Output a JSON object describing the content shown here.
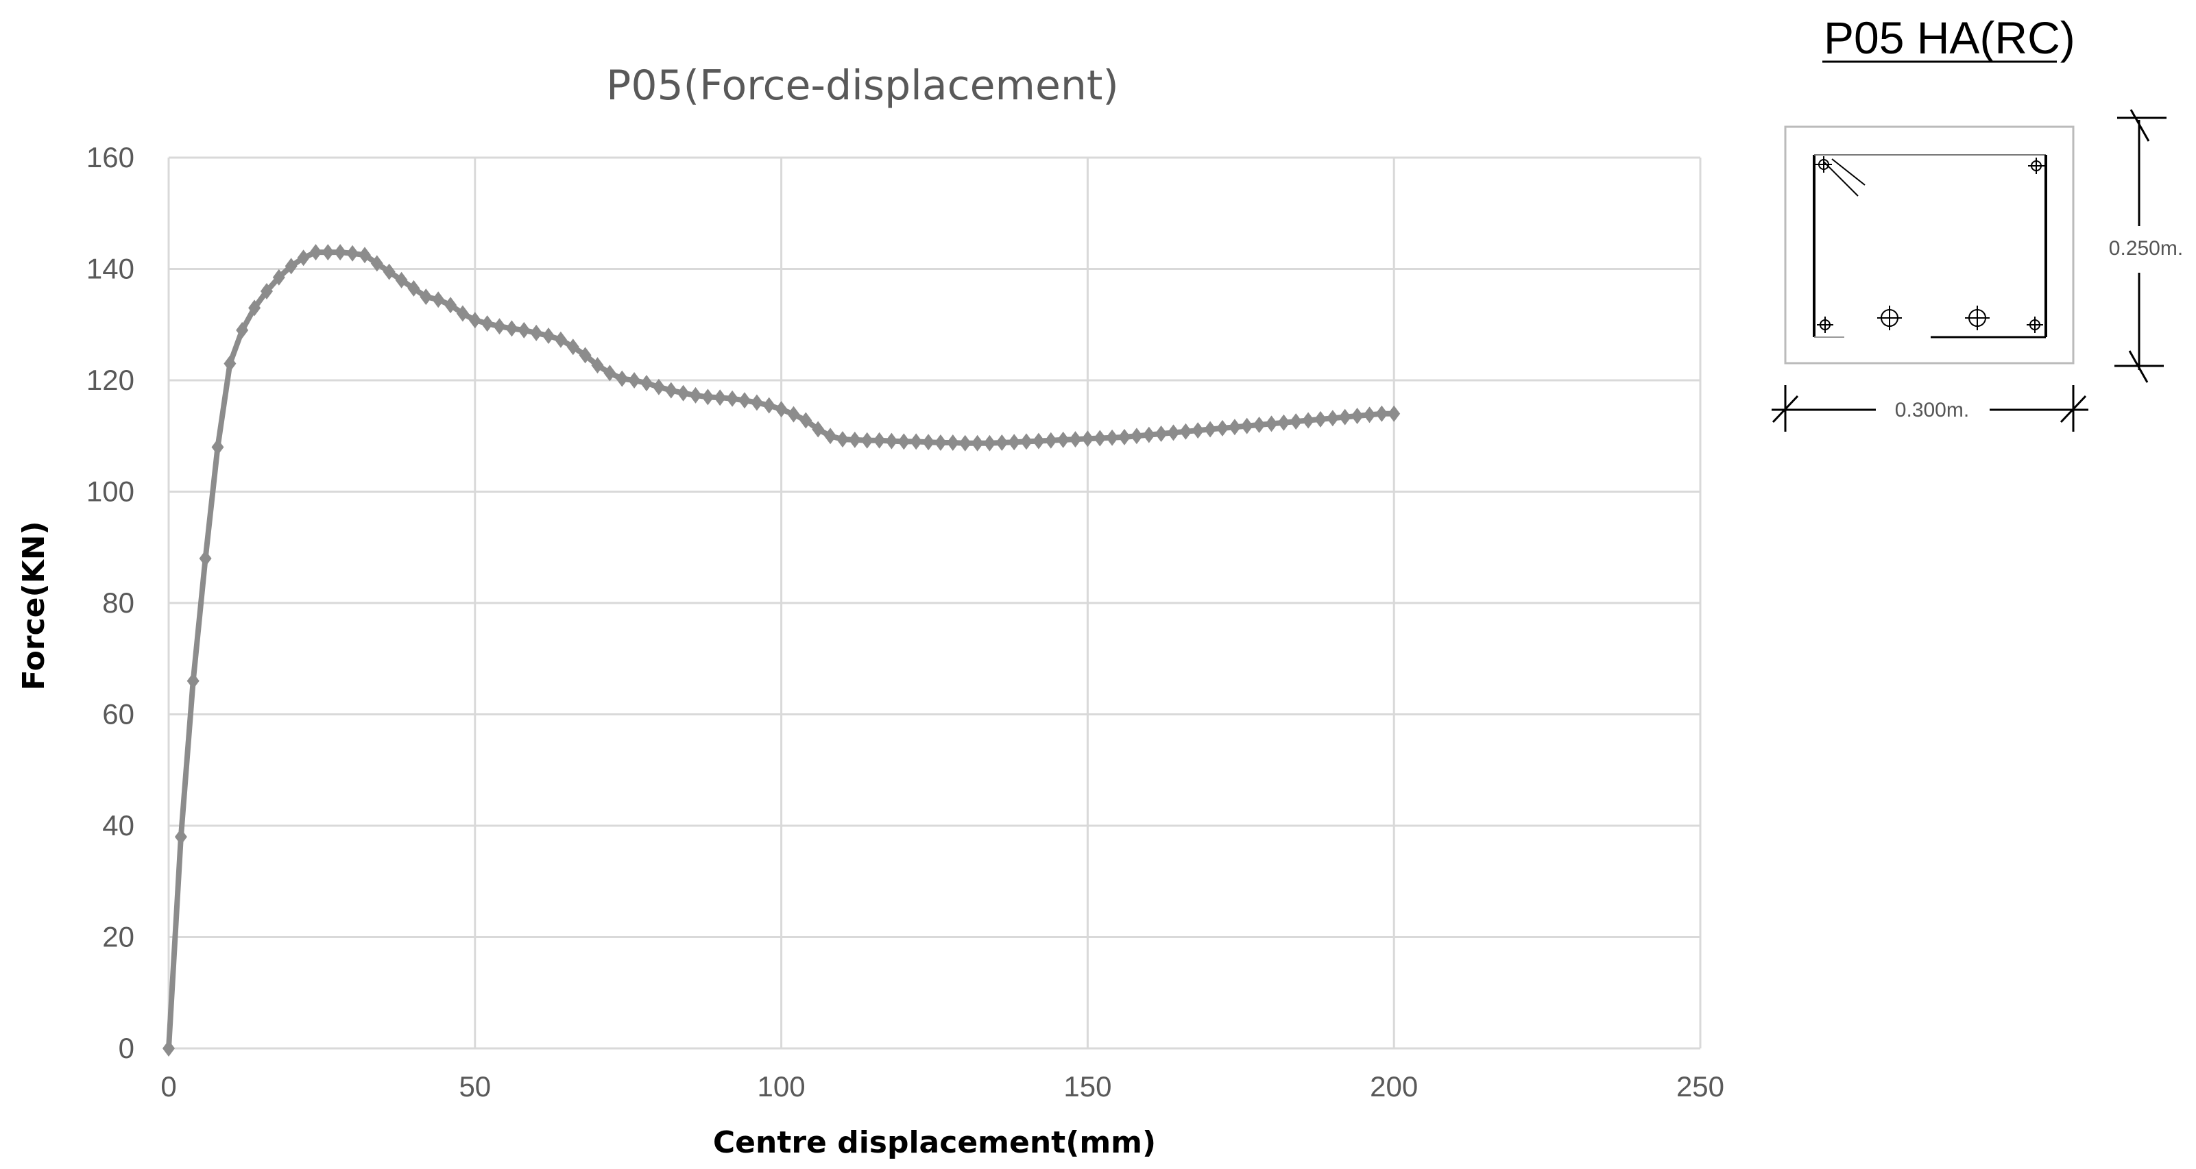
{
  "chart_data": {
    "type": "line",
    "title": "P05(Force-displacement)",
    "xlabel": "Centre displacement(mm)",
    "ylabel": "Force(KN)",
    "xlim": [
      0,
      250
    ],
    "ylim": [
      0,
      160
    ],
    "x_ticks": [
      "0",
      "50",
      "100",
      "150",
      "200",
      "250"
    ],
    "y_ticks": [
      "0",
      "20",
      "40",
      "60",
      "80",
      "100",
      "120",
      "140",
      "160"
    ],
    "grid": true,
    "legend": "none",
    "marker": "diamond",
    "series": [
      {
        "color": "#8c8c8c",
        "x": [
          0,
          2,
          4,
          6,
          8,
          10,
          12,
          14,
          16,
          18,
          20,
          22,
          24,
          26,
          28,
          30,
          32,
          34,
          36,
          38,
          40,
          42,
          44,
          46,
          48,
          50,
          52,
          54,
          56,
          58,
          60,
          62,
          64,
          66,
          68,
          70,
          72,
          74,
          76,
          78,
          80,
          82,
          84,
          86,
          88,
          90,
          92,
          94,
          96,
          98,
          100,
          102,
          104,
          106,
          108,
          110,
          112,
          114,
          116,
          118,
          120,
          122,
          124,
          126,
          128,
          130,
          132,
          134,
          136,
          138,
          140,
          142,
          144,
          146,
          148,
          150,
          152,
          154,
          156,
          158,
          160,
          162,
          164,
          166,
          168,
          170,
          172,
          174,
          176,
          178,
          180,
          182,
          184,
          186,
          188,
          190,
          192,
          194,
          196,
          198,
          200
        ],
        "y": [
          0,
          38,
          66,
          88,
          108,
          123,
          129,
          133,
          136,
          138.5,
          140.5,
          142,
          143,
          143,
          143,
          142.8,
          142.5,
          141,
          139.5,
          138,
          136.5,
          135,
          134.5,
          133.5,
          132,
          130.8,
          130.2,
          129.7,
          129.3,
          129,
          128.5,
          128,
          127.3,
          126,
          124.5,
          122.7,
          121.3,
          120.3,
          120,
          119.5,
          118.8,
          118.2,
          117.7,
          117.3,
          117,
          116.9,
          116.7,
          116.4,
          116,
          115.5,
          114.8,
          113.9,
          112.8,
          111.2,
          110,
          109.4,
          109.3,
          109.2,
          109.2,
          109.1,
          109,
          109,
          108.9,
          108.8,
          108.8,
          108.7,
          108.7,
          108.7,
          108.8,
          108.9,
          109,
          109.1,
          109.2,
          109.3,
          109.4,
          109.5,
          109.6,
          109.7,
          109.8,
          110,
          110.2,
          110.4,
          110.6,
          110.8,
          111,
          111.2,
          111.4,
          111.6,
          111.8,
          112,
          112.2,
          112.4,
          112.6,
          112.8,
          113,
          113.2,
          113.4,
          113.6,
          113.8,
          114,
          114
        ]
      }
    ]
  },
  "section": {
    "title": "P05  HA(RC)",
    "height_label": "0.250m.",
    "width_label": "0.300m."
  }
}
